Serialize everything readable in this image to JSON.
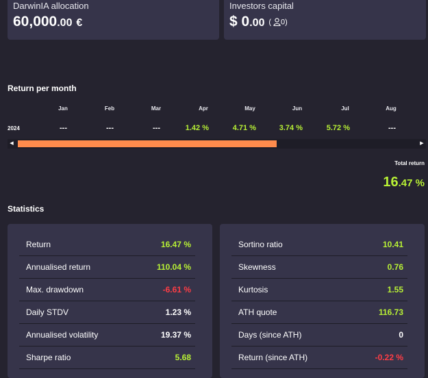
{
  "allocation": {
    "title": "DarwinIA allocation",
    "value_int": "60,000",
    "value_dec": ".00",
    "currency": "€"
  },
  "investors": {
    "title": "Investors capital",
    "currency": "$",
    "value_int": "0",
    "value_dec": ".00",
    "count_open": "(",
    "count": "0",
    "count_close": ")",
    "icon": "user-icon"
  },
  "returns": {
    "title": "Return per month",
    "year": "2024",
    "months": [
      {
        "label": "Jan",
        "value": "---",
        "positive": false
      },
      {
        "label": "Feb",
        "value": "---",
        "positive": false
      },
      {
        "label": "Mar",
        "value": "---",
        "positive": false
      },
      {
        "label": "Apr",
        "value": "1.42 %",
        "positive": true
      },
      {
        "label": "May",
        "value": "4.71 %",
        "positive": true
      },
      {
        "label": "Jun",
        "value": "3.74 %",
        "positive": true
      },
      {
        "label": "Jul",
        "value": "5.72 %",
        "positive": true
      },
      {
        "label": "Aug",
        "value": "---",
        "positive": false
      }
    ],
    "scroll_fraction": 0.65,
    "total_label": "Total return",
    "total_int": "16",
    "total_dec": ".47 %"
  },
  "statistics": {
    "title": "Statistics",
    "left": [
      {
        "label": "Return",
        "value": "16.47 %",
        "color": "green"
      },
      {
        "label": "Annualised return",
        "value": "110.04 %",
        "color": "green"
      },
      {
        "label": "Max. drawdown",
        "value": "-6.61 %",
        "color": "red"
      },
      {
        "label": "Daily STDV",
        "value": "1.23 %",
        "color": "white"
      },
      {
        "label": "Annualised volatility",
        "value": "19.37 %",
        "color": "white"
      },
      {
        "label": "Sharpe ratio",
        "value": "5.68",
        "color": "green"
      }
    ],
    "right": [
      {
        "label": "Sortino ratio",
        "value": "10.41",
        "color": "green"
      },
      {
        "label": "Skewness",
        "value": "0.76",
        "color": "green"
      },
      {
        "label": "Kurtosis",
        "value": "1.55",
        "color": "green"
      },
      {
        "label": "ATH quote",
        "value": "116.73",
        "color": "green"
      },
      {
        "label": "Days (since ATH)",
        "value": "0",
        "color": "white"
      },
      {
        "label": "Return (since ATH)",
        "value": "-0.22 %",
        "color": "red"
      }
    ]
  },
  "colors": {
    "green": "#b8f135",
    "red": "#ff3d45",
    "orange": "#ff8c4d",
    "panel": "#36344a",
    "background": "#25232f"
  }
}
